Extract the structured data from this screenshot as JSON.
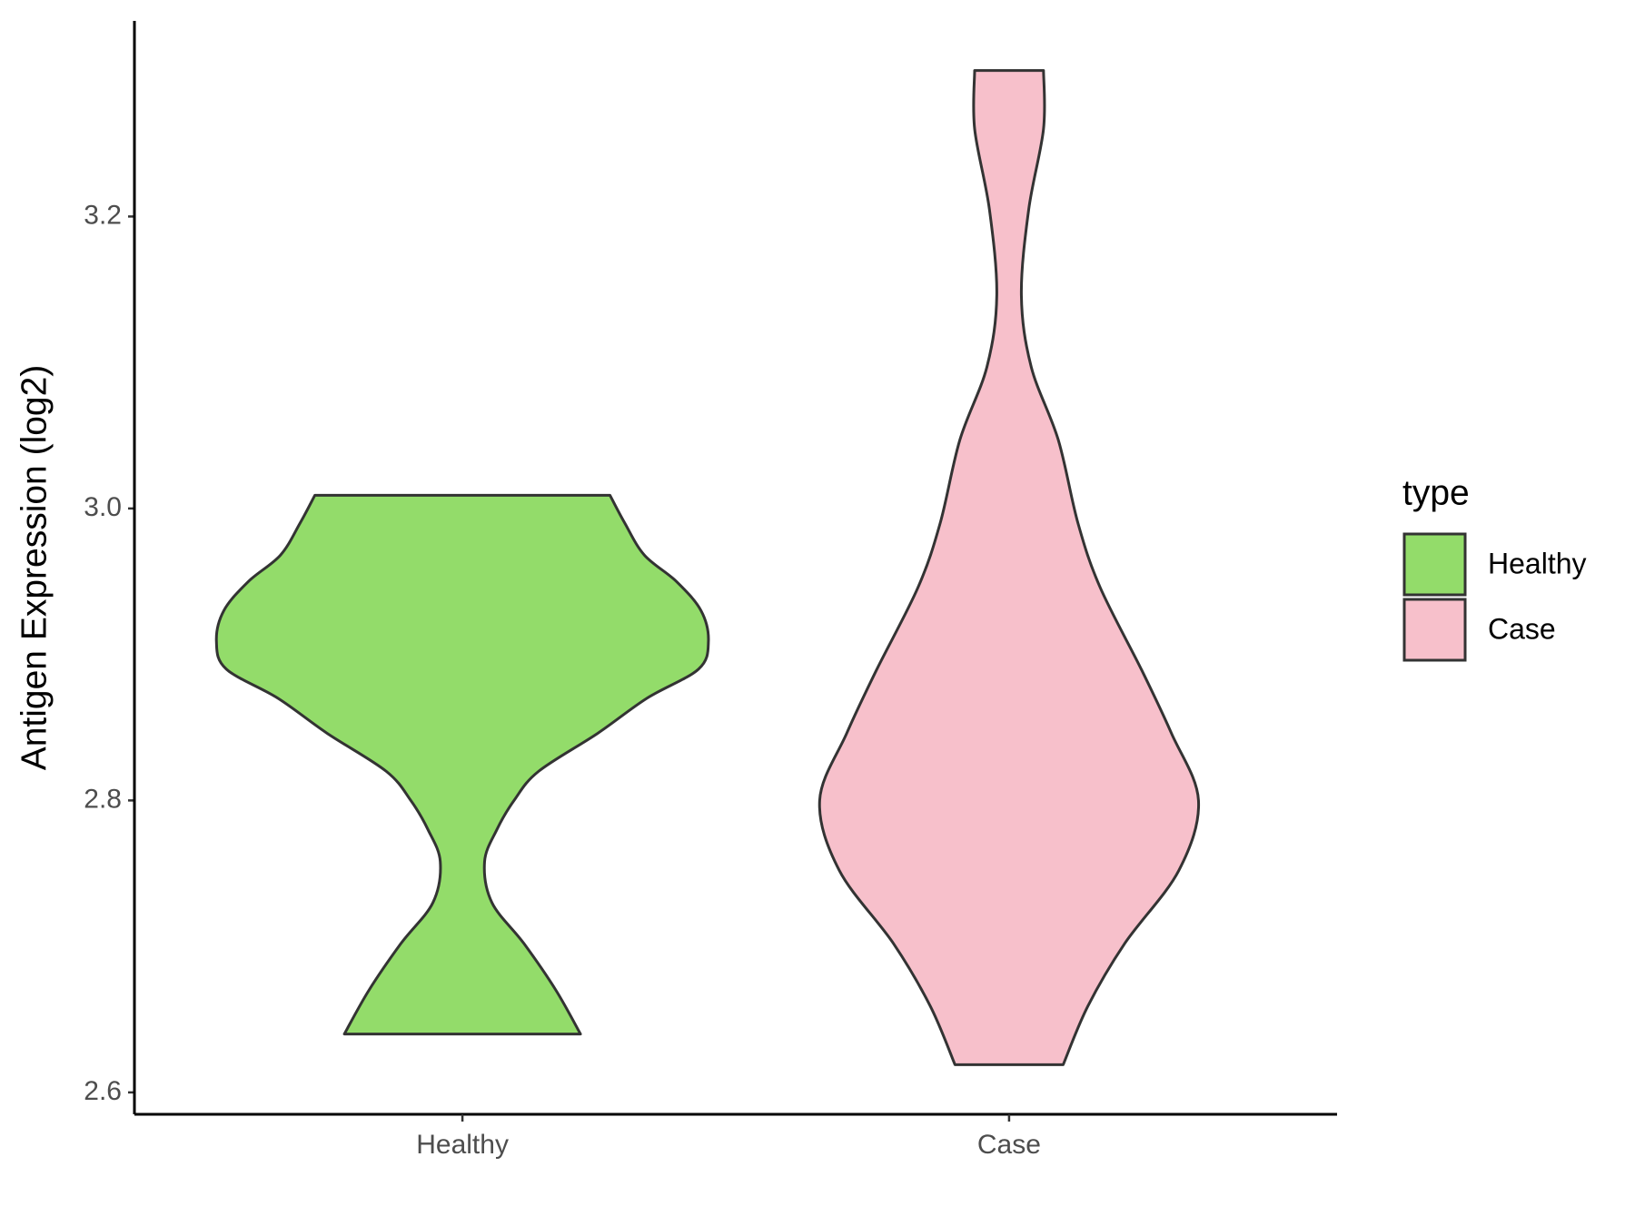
{
  "chart_data": {
    "type": "violin",
    "y_label": "Antigen Expression (log2)",
    "categories": [
      "Healthy",
      "Case"
    ],
    "legend_title": "type",
    "legend": "right",
    "ylim": [
      2.585,
      3.334
    ],
    "yticks": [
      2.6,
      2.8,
      {
        "value": 3,
        "label": "3.0"
      },
      3.2
    ],
    "series": [
      {
        "name": "Healthy",
        "color": "#93dc6a",
        "y": [
          2.64,
          2.67,
          2.702,
          2.73,
          2.758,
          2.78,
          2.8,
          2.82,
          2.846,
          2.87,
          2.89,
          2.909,
          2.93,
          2.95,
          2.968,
          2.99,
          3.009
        ],
        "density": [
          0.48,
          0.38,
          0.25,
          0.12,
          0.09,
          0.14,
          0.21,
          0.31,
          0.55,
          0.75,
          0.96,
          1.0,
          0.97,
          0.87,
          0.74,
          0.66,
          0.6
        ]
      },
      {
        "name": "Case",
        "color": "#f7c0cb",
        "y": [
          2.619,
          2.659,
          2.702,
          2.752,
          2.8,
          2.846,
          2.889,
          2.946,
          2.99,
          3.047,
          3.097,
          3.146,
          3.205,
          3.26,
          3.3
        ],
        "density": [
          0.22,
          0.32,
          0.47,
          0.69,
          0.77,
          0.66,
          0.54,
          0.37,
          0.28,
          0.2,
          0.09,
          0.05,
          0.08,
          0.14,
          0.14
        ]
      }
    ]
  }
}
